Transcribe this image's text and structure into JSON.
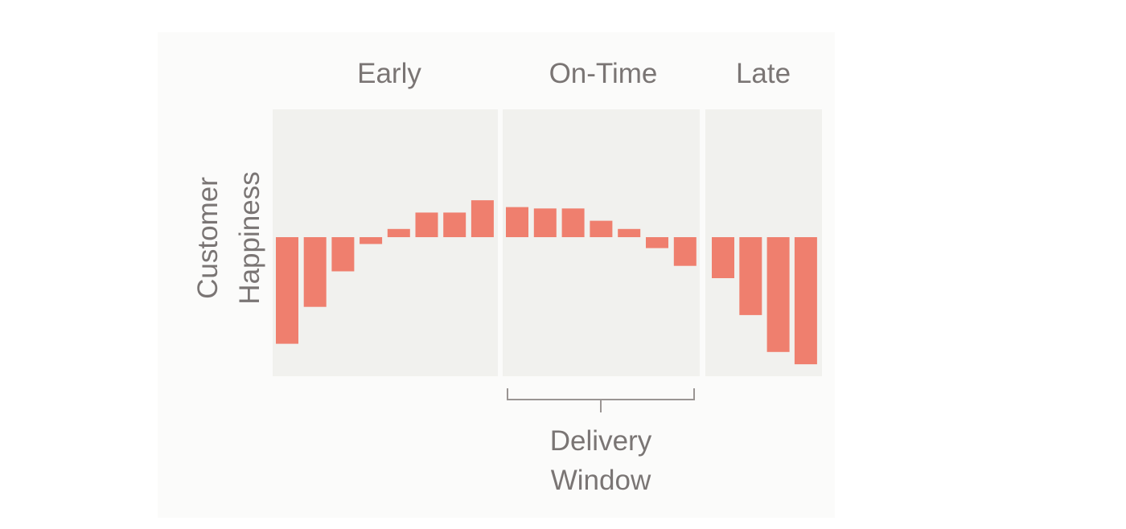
{
  "chart_data": {
    "type": "bar",
    "title": "",
    "ylabel": "Customer Happiness",
    "xlabel": "",
    "ylim": [
      -1,
      1
    ],
    "grid": false,
    "legend": "none",
    "colors": {
      "bar": "#ef7f6e",
      "panel_background": "#f1f1ee",
      "text": "#7a7574"
    },
    "panels": [
      {
        "label": "Early",
        "values": [
          -0.78,
          -0.51,
          -0.25,
          -0.05,
          0.06,
          0.18,
          0.18,
          0.27
        ]
      },
      {
        "label": "On-Time",
        "values": [
          0.22,
          0.21,
          0.21,
          0.12,
          0.06,
          -0.08,
          -0.21
        ]
      },
      {
        "label": "Late",
        "values": [
          -0.3,
          -0.57,
          -0.84,
          -0.93
        ]
      }
    ],
    "annotation": {
      "text_line1": "Delivery",
      "text_line2": "Window",
      "spans_panel": "On-Time"
    }
  }
}
